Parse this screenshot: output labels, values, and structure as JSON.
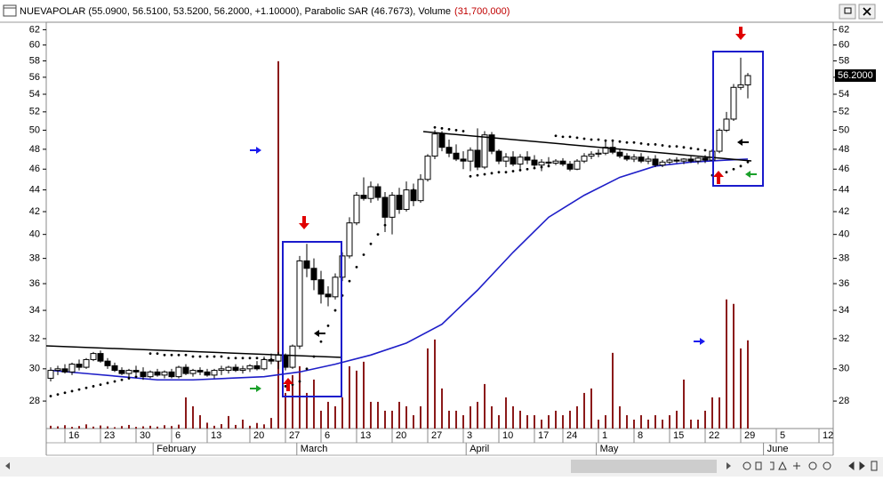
{
  "chart_data": {
    "type": "candlestick",
    "title": "NUEVAPOLAR (55.0900, 56.5100, 53.5200, 56.2000, +1.10000), Parabolic SAR (46.7673), Volume",
    "volume_label": "(31,700,000)",
    "last_label": "56.2000",
    "log_y": true,
    "grid": false,
    "xlim": [
      -0.625,
      110
    ],
    "ylim": [
      26.4,
      63
    ],
    "yticks": [
      28,
      30,
      32,
      34,
      36,
      38,
      40,
      42,
      44,
      46,
      48,
      50,
      52,
      54,
      56,
      58,
      60,
      62
    ],
    "xticks": [
      {
        "value": 2,
        "label": "16"
      },
      {
        "value": 7,
        "label": "23"
      },
      {
        "value": 12,
        "label": "30"
      },
      {
        "value": 17,
        "label": "6"
      },
      {
        "value": 22,
        "label": "13"
      },
      {
        "value": 28,
        "label": "20"
      },
      {
        "value": 33,
        "label": "27"
      },
      {
        "value": 38,
        "label": "6"
      },
      {
        "value": 43,
        "label": "13"
      },
      {
        "value": 48,
        "label": "20"
      },
      {
        "value": 53,
        "label": "27"
      },
      {
        "value": 58,
        "label": "3"
      },
      {
        "value": 63,
        "label": "10"
      },
      {
        "value": 68,
        "label": "17"
      },
      {
        "value": 72,
        "label": "24"
      },
      {
        "value": 77,
        "label": "1"
      },
      {
        "value": 82,
        "label": "8"
      },
      {
        "value": 87,
        "label": "15"
      },
      {
        "value": 92,
        "label": "22"
      },
      {
        "value": 97,
        "label": "29"
      },
      {
        "value": 102,
        "label": "5"
      },
      {
        "value": 108,
        "label": "12"
      }
    ],
    "months": [
      {
        "value": 14.4,
        "label": "February"
      },
      {
        "value": 34.6,
        "label": "March"
      },
      {
        "value": 58.4,
        "label": "April"
      },
      {
        "value": 76.7,
        "label": "May"
      },
      {
        "value": 100.2,
        "label": "June"
      }
    ],
    "up_color": "#ffffff",
    "down_color": "#000000",
    "sar_color": "#000000",
    "x": [
      0,
      1,
      2,
      3,
      4,
      5,
      6,
      7,
      8,
      9,
      10,
      11,
      12,
      13,
      14,
      15,
      16,
      17,
      18,
      19,
      20,
      21,
      22,
      23,
      24,
      25,
      26,
      27,
      28,
      29,
      30,
      31,
      32,
      33,
      34,
      35,
      36,
      37,
      38,
      39,
      40,
      41,
      42,
      43,
      44,
      45,
      46,
      47,
      48,
      49,
      50,
      51,
      52,
      53,
      54,
      55,
      56,
      57,
      58,
      59,
      60,
      61,
      62,
      63,
      64,
      65,
      66,
      67,
      68,
      69,
      70,
      71,
      72,
      73,
      74,
      75,
      76,
      77,
      78,
      79,
      80,
      81,
      82,
      83,
      84,
      85,
      86,
      87,
      88,
      89,
      90,
      91,
      92,
      93,
      94,
      95,
      96,
      97,
      98
    ],
    "open": [
      29.4,
      29.9,
      30.0,
      29.8,
      30.3,
      30.1,
      30.6,
      31.0,
      30.5,
      30.2,
      29.9,
      29.7,
      29.9,
      29.8,
      29.5,
      29.8,
      29.6,
      29.8,
      29.5,
      30.1,
      29.7,
      29.9,
      29.8,
      29.6,
      29.9,
      29.9,
      30.1,
      29.9,
      30.0,
      30.2,
      30.0,
      30.6,
      30.5,
      30.9,
      30.1,
      31.5,
      37.8,
      37.2,
      36.3,
      35.2,
      35.0,
      36.5,
      38.2,
      41.0,
      43.5,
      43.2,
      44.3,
      43.3,
      41.5,
      43.5,
      42.2,
      44.0,
      43.0,
      45.0,
      47.3,
      49.6,
      48.2,
      47.6,
      47.0,
      46.8,
      47.9,
      46.2,
      49.5,
      47.8,
      46.8,
      47.2,
      46.5,
      47.2,
      46.9,
      46.4,
      46.7,
      46.6,
      46.8,
      46.5,
      46.0,
      46.8,
      47.3,
      47.5,
      47.6,
      48.2,
      47.7,
      47.3,
      47.0,
      47.2,
      46.8,
      47.0,
      46.4,
      46.7,
      46.9,
      46.8,
      47.0,
      46.8,
      47.1,
      46.9,
      47.8,
      50.0,
      51.2,
      54.8,
      55.09
    ],
    "high": [
      30.1,
      30.2,
      30.3,
      30.4,
      30.6,
      30.7,
      31.1,
      31.2,
      30.7,
      30.4,
      30.1,
      30.0,
      30.2,
      30.1,
      29.9,
      30.0,
      29.9,
      30.0,
      30.2,
      30.3,
      30.0,
      30.1,
      30.0,
      30.0,
      30.2,
      30.2,
      30.3,
      30.2,
      30.3,
      30.5,
      30.8,
      31.0,
      31.1,
      31.0,
      31.6,
      38.2,
      39.2,
      38.0,
      37.0,
      35.8,
      36.8,
      38.5,
      41.5,
      43.8,
      45.2,
      44.8,
      44.6,
      43.8,
      43.8,
      44.2,
      44.8,
      44.6,
      45.5,
      47.5,
      50.0,
      49.9,
      49.0,
      48.5,
      47.8,
      48.2,
      50.2,
      49.9,
      49.8,
      48.0,
      47.6,
      47.8,
      47.5,
      47.8,
      47.4,
      47.0,
      47.2,
      47.0,
      47.1,
      46.8,
      47.0,
      47.6,
      47.8,
      48.0,
      48.9,
      49.0,
      48.0,
      47.6,
      47.5,
      47.6,
      47.3,
      47.4,
      46.9,
      47.1,
      47.2,
      47.1,
      47.3,
      47.2,
      47.4,
      48.0,
      50.2,
      52.0,
      55.2,
      58.4,
      56.51
    ],
    "low": [
      29.2,
      29.6,
      29.7,
      29.6,
      29.9,
      30.0,
      30.5,
      30.4,
      30.0,
      29.8,
      29.6,
      29.4,
      29.6,
      29.3,
      29.4,
      29.5,
      29.4,
      29.4,
      29.4,
      29.6,
      29.5,
      29.6,
      29.5,
      29.4,
      29.6,
      29.7,
      29.8,
      29.7,
      29.8,
      29.9,
      29.9,
      30.3,
      30.0,
      29.9,
      30.0,
      31.3,
      36.5,
      35.5,
      34.5,
      34.3,
      34.8,
      36.2,
      38.0,
      40.8,
      43.0,
      42.8,
      43.0,
      40.2,
      40.0,
      41.8,
      42.0,
      42.5,
      42.8,
      44.8,
      47.0,
      47.8,
      47.2,
      46.8,
      46.0,
      45.8,
      45.9,
      46.0,
      47.5,
      46.5,
      46.2,
      46.3,
      46.0,
      46.5,
      46.1,
      45.8,
      46.3,
      46.4,
      46.3,
      45.8,
      45.9,
      46.6,
      47.0,
      47.2,
      47.4,
      47.5,
      47.1,
      46.8,
      46.7,
      46.6,
      46.5,
      46.2,
      46.2,
      46.5,
      46.6,
      46.5,
      46.6,
      46.5,
      46.6,
      46.8,
      47.6,
      49.8,
      51.0,
      54.5,
      53.52
    ],
    "close": [
      29.9,
      30.0,
      29.8,
      30.3,
      30.1,
      30.6,
      31.0,
      30.5,
      30.2,
      29.9,
      29.7,
      29.9,
      29.8,
      29.5,
      29.8,
      29.6,
      29.8,
      29.5,
      30.1,
      29.7,
      29.9,
      29.8,
      29.6,
      29.9,
      30.0,
      30.1,
      29.9,
      30.0,
      30.2,
      30.0,
      30.6,
      30.5,
      30.9,
      30.1,
      31.5,
      37.8,
      37.2,
      36.3,
      35.2,
      35.0,
      36.5,
      38.2,
      41.0,
      43.5,
      43.2,
      44.3,
      43.3,
      41.5,
      43.5,
      42.2,
      44.0,
      43.0,
      45.0,
      47.3,
      49.6,
      48.2,
      47.6,
      47.0,
      46.8,
      47.9,
      46.2,
      49.5,
      47.8,
      46.8,
      47.2,
      46.5,
      47.2,
      46.9,
      46.4,
      46.7,
      46.6,
      46.8,
      46.5,
      46.0,
      46.8,
      47.3,
      47.5,
      47.6,
      48.2,
      47.7,
      47.3,
      47.0,
      47.2,
      46.8,
      47.0,
      46.4,
      46.7,
      46.9,
      46.8,
      47.0,
      46.8,
      47.1,
      46.9,
      47.8,
      50.0,
      51.2,
      54.8,
      55.1,
      56.2
    ],
    "sar": [
      28.3,
      28.4,
      28.5,
      28.6,
      28.7,
      28.8,
      28.9,
      29.0,
      29.1,
      29.2,
      29.3,
      29.4,
      29.5,
      29.6,
      31.0,
      31.0,
      30.9,
      30.9,
      30.9,
      30.9,
      30.8,
      30.8,
      30.8,
      30.8,
      30.8,
      30.7,
      30.7,
      30.7,
      30.7,
      30.7,
      30.6,
      30.6,
      30.6,
      28.9,
      29.0,
      29.2,
      30.0,
      30.8,
      31.8,
      32.9,
      34.0,
      35.1,
      36.2,
      37.3,
      38.3,
      39.2,
      40.0,
      40.8,
      41.6,
      42.4,
      43.2,
      44.0,
      44.8,
      45.5,
      50.3,
      50.2,
      50.1,
      50.0,
      49.9,
      45.3,
      45.4,
      45.5,
      45.6,
      45.7,
      45.7,
      45.8,
      45.9,
      46.0,
      46.1,
      46.2,
      46.3,
      49.4,
      49.3,
      49.3,
      49.2,
      49.1,
      49.0,
      49.0,
      48.9,
      48.9,
      48.8,
      48.7,
      48.7,
      48.6,
      48.5,
      48.5,
      48.4,
      48.3,
      48.3,
      48.2,
      48.1,
      48.0,
      47.9,
      45.4,
      45.5,
      45.7,
      46.0,
      46.3,
      46.7
    ],
    "ma": {
      "color": "#1e1ec8",
      "x": [
        0,
        5,
        10,
        15,
        20,
        25,
        30,
        35,
        40,
        45,
        50,
        55,
        60,
        65,
        70,
        75,
        80,
        85,
        90,
        95,
        98
      ],
      "values": [
        29.9,
        29.7,
        29.5,
        29.3,
        29.3,
        29.4,
        29.5,
        29.8,
        30.3,
        30.9,
        31.7,
        33.0,
        35.5,
        38.5,
        41.5,
        43.5,
        45.2,
        46.3,
        46.7,
        46.9,
        47.0
      ]
    },
    "volume": {
      "color": "#8b1a1a",
      "lim": [
        0,
        146000000
      ],
      "values": [
        1000000,
        800000,
        1200000,
        600000,
        900000,
        1500000,
        700000,
        1100000,
        800000,
        500000,
        900000,
        1300000,
        600000,
        800000,
        1000000,
        700000,
        1200000,
        900000,
        1400000,
        11200000,
        8000000,
        4800000,
        2100000,
        1000000,
        1600000,
        4500000,
        1300000,
        3200000,
        1000000,
        2000000,
        1500000,
        3800000,
        132000000,
        12800000,
        19200000,
        22400000,
        12800000,
        17600000,
        6400000,
        9600000,
        8000000,
        11200000,
        22400000,
        20800000,
        24000000,
        9600000,
        9600000,
        6400000,
        6400000,
        9600000,
        8000000,
        4800000,
        8000000,
        28800000,
        32000000,
        14400000,
        6400000,
        6400000,
        4800000,
        8000000,
        9600000,
        16000000,
        8000000,
        4800000,
        11200000,
        8000000,
        6400000,
        4800000,
        4800000,
        3200000,
        4800000,
        6400000,
        4800000,
        6400000,
        8000000,
        12800000,
        14400000,
        3200000,
        4800000,
        27200000,
        8000000,
        4800000,
        3200000,
        4800000,
        3200000,
        4800000,
        3200000,
        4800000,
        6400000,
        17600000,
        3200000,
        3200000,
        6400000,
        11200000,
        11200000,
        46400000,
        44800000,
        28800000,
        31700000
      ]
    }
  }
}
